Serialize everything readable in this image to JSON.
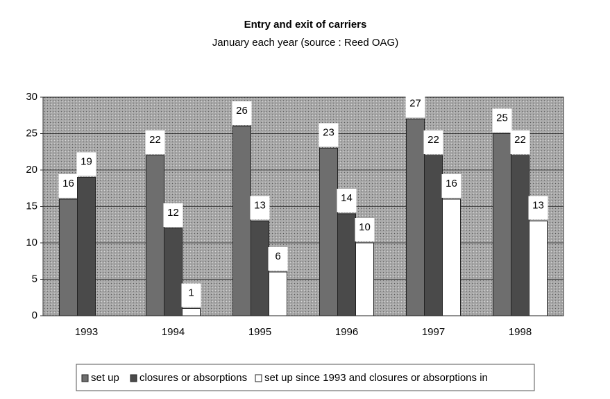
{
  "chart_data": {
    "type": "bar",
    "title": "Entry and exit of carriers",
    "subtitle": "January each year (source : Reed OAG)",
    "categories": [
      "1993",
      "1994",
      "1995",
      "1996",
      "1997",
      "1998"
    ],
    "series": [
      {
        "name": "set up",
        "color": "#6e6e6e",
        "values": [
          16,
          22,
          26,
          23,
          27,
          25
        ]
      },
      {
        "name": "closures or absorptions",
        "color": "#4a4a4a",
        "values": [
          19,
          12,
          13,
          14,
          22,
          22
        ]
      },
      {
        "name": "set up since 1993 and closures or absorptions in",
        "color": "#ffffff",
        "values": [
          null,
          1,
          6,
          10,
          16,
          13
        ]
      }
    ],
    "ylim": [
      0,
      30
    ],
    "yticks": [
      0,
      5,
      10,
      15,
      20,
      25,
      30
    ],
    "grid": true
  }
}
